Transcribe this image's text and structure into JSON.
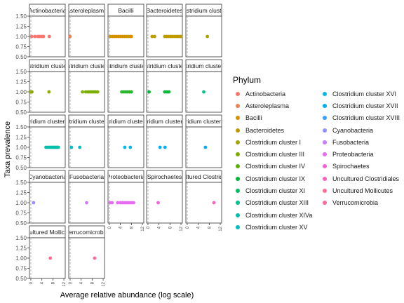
{
  "chart_data": {
    "type": "scatter",
    "xlabel": "Average relative abundance (log scale)",
    "ylabel": "Taxa prevalence",
    "ylim": [
      0.5,
      1.5
    ],
    "xlim": [
      -0.5,
      12.5
    ],
    "x_ticks": [
      "0",
      "4",
      "8",
      "12"
    ],
    "y_ticks": [
      "0.50",
      "0.75",
      "1.00",
      "1.25",
      "1.50"
    ],
    "legend": {
      "title": "Phylum",
      "placement": "right",
      "items": [
        {
          "name": "Actinobacteria",
          "color": "#F8766D"
        },
        {
          "name": "Asteroleplasma",
          "color": "#E8855A"
        },
        {
          "name": "Bacilli",
          "color": "#D39200"
        },
        {
          "name": "Bacteroidetes",
          "color": "#C09B00"
        },
        {
          "name": "Clostridium cluster I",
          "color": "#A3A500"
        },
        {
          "name": "Clostridium cluster III",
          "color": "#7CAE00"
        },
        {
          "name": "Clostridium cluster IV",
          "color": "#5BB300"
        },
        {
          "name": "Clostridium cluster IX",
          "color": "#00BA38"
        },
        {
          "name": "Clostridium cluster XI",
          "color": "#00BC59"
        },
        {
          "name": "Clostridium cluster XIII",
          "color": "#00C08B"
        },
        {
          "name": "Clostridium cluster XIVa",
          "color": "#00BFAA"
        },
        {
          "name": "Clostridium cluster XV",
          "color": "#00BFC4"
        },
        {
          "name": "Clostridium cluster XVI",
          "color": "#00B9E3"
        },
        {
          "name": "Clostridium cluster XVII",
          "color": "#00B0F6"
        },
        {
          "name": "Clostridium cluster XVIII",
          "color": "#35A2FF"
        },
        {
          "name": "Cyanobacteria",
          "color": "#9590FF"
        },
        {
          "name": "Fusobacteria",
          "color": "#C77CFF"
        },
        {
          "name": "Proteobacteria",
          "color": "#E76BF3"
        },
        {
          "name": "Spirochaetes",
          "color": "#FA62DB"
        },
        {
          "name": "Uncultured Clostridiales",
          "color": "#FF62BC"
        },
        {
          "name": "Uncultured Mollicutes",
          "color": "#FF6C91"
        },
        {
          "name": "Verrucomicrobia",
          "color": "#FF6A98"
        }
      ]
    },
    "panels": [
      {
        "label": "Actinobacteria",
        "color": "#F8766D",
        "x": [
          0.3,
          1.5,
          2.6,
          3.2,
          3.9,
          4.6,
          6.7
        ],
        "y": [
          1,
          1,
          1,
          1,
          1,
          1,
          1
        ]
      },
      {
        "label": "Asteroleplasma",
        "color": "#E8855A",
        "x": [
          0.0
        ],
        "y": [
          1
        ]
      },
      {
        "label": "Bacilli",
        "color": "#D39200",
        "x": [
          0.3,
          1.2,
          1.9,
          2.6,
          3.3,
          4.0,
          4.7,
          5.4,
          6.1,
          6.8,
          7.5,
          8.0
        ],
        "y": [
          1,
          1,
          1,
          1,
          1,
          1,
          1,
          1,
          1,
          1,
          1,
          1
        ]
      },
      {
        "label": "Bacteroidetes",
        "color": "#C09B00",
        "x": [
          1.5,
          2.4,
          6.1,
          6.8,
          7.5,
          8.2,
          8.9,
          9.6,
          10.3,
          10.9,
          11.6,
          12.0
        ],
        "y": [
          1,
          1,
          1,
          1,
          1,
          1,
          1,
          1,
          1,
          1,
          1,
          1
        ]
      },
      {
        "label": "Clostridium cluster I",
        "color": "#A3A500",
        "x": [
          7.3
        ],
        "y": [
          1
        ]
      },
      {
        "label": "Clostridium cluster III",
        "color": "#8FAA00",
        "x": [
          0.0,
          0.4,
          6.6
        ],
        "y": [
          1,
          1,
          1
        ]
      },
      {
        "label": "Clostridium cluster IV",
        "color": "#7CAE00",
        "x": [
          4.5,
          5.7,
          6.5,
          7.1,
          7.6,
          8.2,
          8.8,
          9.4,
          10.0
        ],
        "y": [
          1,
          1,
          1,
          1,
          1,
          1,
          1,
          1,
          1
        ]
      },
      {
        "label": "Clostridium cluster IX",
        "color": "#2AB62B",
        "x": [
          4.5,
          5.3,
          6.0,
          6.6,
          7.3,
          8.0
        ],
        "y": [
          1,
          1,
          1,
          1,
          1,
          1
        ]
      },
      {
        "label": "Clostridium cluster XI",
        "color": "#00BA38",
        "x": [
          0.4,
          6.1,
          6.9,
          7.6
        ],
        "y": [
          1,
          1,
          1,
          1
        ]
      },
      {
        "label": "Clostridium cluster XIII",
        "color": "#00C08B",
        "x": [
          6.0
        ],
        "y": [
          1
        ]
      },
      {
        "label": "Clostridium cluster XIVa",
        "color": "#00BFAA",
        "x": [
          5.5,
          6.2,
          6.9,
          7.5,
          8.0,
          8.5,
          9.0,
          9.5,
          10.0
        ],
        "y": [
          1,
          1,
          1,
          1,
          1,
          1,
          1,
          1,
          1
        ]
      },
      {
        "label": "Clostridium cluster XV",
        "color": "#00BFC4",
        "x": [
          0.5,
          3.5
        ],
        "y": [
          1,
          1
        ]
      },
      {
        "label": "Clostridium cluster XVI",
        "color": "#00B9E3",
        "x": [
          5.6,
          7.6
        ],
        "y": [
          1,
          1
        ]
      },
      {
        "label": "Clostridium cluster XVII",
        "color": "#00B0F6",
        "x": [
          4.4,
          6.2
        ],
        "y": [
          1,
          1
        ]
      },
      {
        "label": "Clostridium cluster XVIII",
        "color": "#00A9FF",
        "x": [
          6.6
        ],
        "y": [
          1
        ]
      },
      {
        "label": "Cyanobacteria",
        "color": "#9590FF",
        "x": [
          1.0
        ],
        "y": [
          1
        ]
      },
      {
        "label": "Fusobacteria",
        "color": "#C77CFF",
        "x": [
          6.0
        ],
        "y": [
          1
        ]
      },
      {
        "label": "Proteobacteria",
        "color": "#E76BF3",
        "x": [
          0.3,
          1.0,
          3.0,
          4.0,
          4.6,
          5.2,
          5.8,
          6.4,
          7.0,
          7.6,
          8.2,
          8.8
        ],
        "y": [
          1,
          1,
          1,
          1,
          1,
          1,
          1,
          1,
          1,
          1,
          1,
          1
        ]
      },
      {
        "label": "Spirochaetes",
        "color": "#FA62DB",
        "x": [
          3.7
        ],
        "y": [
          1
        ]
      },
      {
        "label": "Uncultured Clostridiales",
        "color": "#FF62BC",
        "x": [
          9.7
        ],
        "y": [
          1
        ]
      },
      {
        "label": "Uncultured Mollicutes",
        "color": "#FF6C91",
        "x": [
          7.1
        ],
        "y": [
          1
        ]
      },
      {
        "label": "Verrucomicrobia",
        "color": "#FF6A98",
        "x": [
          8.9
        ],
        "y": [
          1
        ]
      }
    ]
  }
}
